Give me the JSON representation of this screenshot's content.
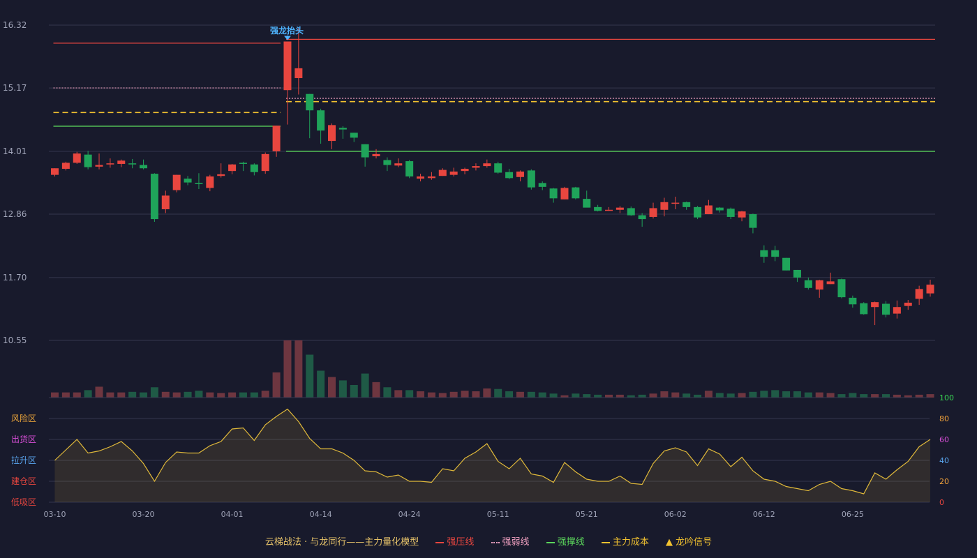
{
  "colors": {
    "background": "#181a2c",
    "up": "#e8463f",
    "down": "#1fa45a",
    "pressure": "#e8463f",
    "weak": "#f0a0c0",
    "support": "#5bd65b",
    "cost": "#f2c230",
    "oscillator": "#e0b93a",
    "signal": "#4fb4ff"
  },
  "chart_data": [
    {
      "type": "candlestick",
      "y_ticks": [
        "16.32",
        "15.17",
        "14.01",
        "12.86",
        "11.70",
        "10.55"
      ],
      "ylim": [
        10.55,
        16.32
      ],
      "x_ticks": [
        {
          "index": 0,
          "label": "03-10"
        },
        {
          "index": 8,
          "label": "03-20"
        },
        {
          "index": 16,
          "label": "04-01"
        },
        {
          "index": 24,
          "label": "04-14"
        },
        {
          "index": 32,
          "label": "04-24"
        },
        {
          "index": 40,
          "label": "05-11"
        },
        {
          "index": 48,
          "label": "05-21"
        },
        {
          "index": 56,
          "label": "06-02"
        },
        {
          "index": 64,
          "label": "06-12"
        },
        {
          "index": 72,
          "label": "06-25"
        }
      ],
      "ohlc": [
        [
          13.58,
          13.7,
          13.55,
          13.7
        ],
        [
          13.69,
          13.82,
          13.66,
          13.8
        ],
        [
          13.8,
          14.0,
          13.78,
          13.97
        ],
        [
          13.95,
          14.02,
          13.68,
          13.72
        ],
        [
          13.73,
          13.97,
          13.68,
          13.76
        ],
        [
          13.77,
          13.88,
          13.71,
          13.79
        ],
        [
          13.78,
          13.86,
          13.72,
          13.84
        ],
        [
          13.79,
          13.87,
          13.7,
          13.77
        ],
        [
          13.76,
          13.86,
          13.68,
          13.7
        ],
        [
          13.6,
          13.61,
          12.72,
          12.77
        ],
        [
          12.95,
          13.29,
          12.88,
          13.2
        ],
        [
          13.3,
          13.58,
          13.26,
          13.58
        ],
        [
          13.51,
          13.56,
          13.39,
          13.44
        ],
        [
          13.43,
          13.61,
          13.32,
          13.41
        ],
        [
          13.34,
          13.58,
          13.28,
          13.55
        ],
        [
          13.56,
          13.79,
          13.53,
          13.59
        ],
        [
          13.65,
          13.78,
          13.59,
          13.77
        ],
        [
          13.8,
          13.82,
          13.65,
          13.78
        ],
        [
          13.77,
          13.79,
          13.57,
          13.63
        ],
        [
          13.65,
          13.99,
          13.6,
          13.96
        ],
        [
          14.01,
          14.48,
          13.91,
          14.48
        ],
        [
          15.13,
          16.02,
          14.5,
          16.02
        ],
        [
          15.35,
          16.27,
          15.05,
          15.53
        ],
        [
          15.06,
          15.06,
          14.25,
          14.76
        ],
        [
          14.76,
          14.79,
          14.15,
          14.39
        ],
        [
          14.2,
          14.52,
          14.05,
          14.49
        ],
        [
          14.44,
          14.47,
          14.24,
          14.41
        ],
        [
          14.35,
          14.35,
          14.18,
          14.26
        ],
        [
          14.14,
          14.14,
          13.73,
          13.9
        ],
        [
          13.92,
          14.05,
          13.88,
          13.96
        ],
        [
          13.85,
          13.9,
          13.65,
          13.76
        ],
        [
          13.75,
          13.88,
          13.72,
          13.79
        ],
        [
          13.83,
          13.85,
          13.52,
          13.55
        ],
        [
          13.51,
          13.6,
          13.46,
          13.55
        ],
        [
          13.52,
          13.63,
          13.49,
          13.55
        ],
        [
          13.56,
          13.7,
          13.56,
          13.67
        ],
        [
          13.58,
          13.71,
          13.55,
          13.64
        ],
        [
          13.65,
          13.71,
          13.59,
          13.69
        ],
        [
          13.71,
          13.79,
          13.66,
          13.74
        ],
        [
          13.74,
          13.86,
          13.71,
          13.79
        ],
        [
          13.79,
          13.82,
          13.6,
          13.62
        ],
        [
          13.63,
          13.69,
          13.5,
          13.52
        ],
        [
          13.54,
          13.66,
          13.46,
          13.64
        ],
        [
          13.66,
          13.68,
          13.31,
          13.35
        ],
        [
          13.43,
          13.46,
          13.3,
          13.36
        ],
        [
          13.33,
          13.34,
          13.07,
          13.15
        ],
        [
          13.13,
          13.36,
          13.13,
          13.34
        ],
        [
          13.35,
          13.36,
          13.13,
          13.15
        ],
        [
          13.14,
          13.29,
          12.99,
          12.98
        ],
        [
          12.99,
          13.03,
          12.91,
          12.92
        ],
        [
          12.94,
          12.99,
          12.92,
          12.94
        ],
        [
          12.94,
          13.01,
          12.88,
          12.98
        ],
        [
          12.97,
          13.0,
          12.83,
          12.84
        ],
        [
          12.84,
          12.88,
          12.63,
          12.77
        ],
        [
          12.81,
          13.07,
          12.78,
          12.97
        ],
        [
          12.94,
          13.16,
          12.82,
          13.08
        ],
        [
          13.06,
          13.18,
          12.95,
          13.07
        ],
        [
          13.08,
          13.09,
          12.94,
          12.99
        ],
        [
          12.99,
          13.01,
          12.77,
          12.8
        ],
        [
          12.86,
          13.12,
          12.86,
          13.02
        ],
        [
          12.98,
          12.99,
          12.89,
          12.93
        ],
        [
          12.96,
          12.98,
          12.77,
          12.81
        ],
        [
          12.8,
          12.92,
          12.73,
          12.91
        ],
        [
          12.86,
          12.87,
          12.51,
          12.61
        ],
        [
          12.2,
          12.29,
          11.97,
          12.08
        ],
        [
          12.2,
          12.28,
          12.0,
          12.08
        ],
        [
          12.06,
          12.06,
          11.83,
          11.83
        ],
        [
          11.84,
          11.84,
          11.62,
          11.7
        ],
        [
          11.65,
          11.7,
          11.48,
          11.51
        ],
        [
          11.48,
          11.66,
          11.33,
          11.65
        ],
        [
          11.58,
          11.79,
          11.58,
          11.63
        ],
        [
          11.67,
          11.68,
          11.32,
          11.34
        ],
        [
          11.33,
          11.37,
          11.15,
          11.21
        ],
        [
          11.23,
          11.25,
          11.02,
          11.03
        ],
        [
          11.16,
          11.26,
          10.83,
          11.25
        ],
        [
          11.22,
          11.27,
          10.97,
          11.02
        ],
        [
          11.04,
          11.28,
          10.95,
          11.16
        ],
        [
          11.18,
          11.29,
          11.11,
          11.24
        ],
        [
          11.31,
          11.55,
          11.2,
          11.49
        ],
        [
          11.41,
          11.66,
          11.35,
          11.57
        ]
      ],
      "volume": [
        9,
        9,
        9,
        13,
        19,
        9,
        9,
        10,
        9,
        18,
        10,
        9,
        10,
        12,
        9,
        8,
        9,
        9,
        9,
        12,
        44,
        100,
        100,
        75,
        47,
        36,
        30,
        22,
        42,
        27,
        18,
        13,
        13,
        11,
        9,
        8,
        10,
        12,
        11,
        16,
        15,
        11,
        10,
        10,
        9,
        7,
        4,
        7,
        6,
        5,
        5,
        5,
        4,
        5,
        7,
        11,
        9,
        7,
        5,
        12,
        8,
        7,
        8,
        10,
        12,
        13,
        11,
        11,
        9,
        9,
        8,
        6,
        8,
        6,
        6,
        6,
        5,
        4,
        5,
        6
      ]
    },
    {
      "type": "line",
      "left_zone_labels": [
        "风险区",
        "出货区",
        "拉升区",
        "建仓区",
        "低吸区"
      ],
      "right_ticks": [
        "100",
        "80",
        "60",
        "40",
        "20",
        "0"
      ],
      "ylim": [
        0,
        100
      ],
      "values": [
        40,
        50,
        60,
        47,
        49,
        53,
        58,
        49,
        37,
        20,
        38,
        48,
        47,
        47,
        54,
        58,
        70,
        71,
        59,
        74,
        82,
        89,
        77,
        61,
        51,
        51,
        47,
        40,
        30,
        29,
        24,
        26,
        20,
        20,
        19,
        32,
        30,
        42,
        48,
        56,
        39,
        32,
        42,
        27,
        25,
        19,
        38,
        29,
        22,
        20,
        20,
        25,
        18,
        17,
        37,
        49,
        52,
        48,
        35,
        51,
        46,
        34,
        43,
        30,
        22,
        20,
        15,
        13,
        11,
        17,
        20,
        13,
        11,
        8,
        28,
        22,
        31,
        39,
        53,
        60
      ]
    }
  ],
  "levels": {
    "before": {
      "pressure": 15.99,
      "weak": 15.17,
      "cost": 14.72,
      "support": 14.47
    },
    "after": {
      "pressure": 16.06,
      "weak": 14.98,
      "cost": 14.92,
      "support": 14.01
    },
    "split_index": 21
  },
  "signal": {
    "label": "强龙抬头",
    "index": 21
  },
  "legend": {
    "title": "云梯战法 · 与龙同行——主力量化模型",
    "items": [
      {
        "label": "强压线",
        "color": "#e8463f",
        "style": "solid"
      },
      {
        "label": "强弱线",
        "color": "#f0a0c0",
        "style": "dotted"
      },
      {
        "label": "强撑线",
        "color": "#5bd65b",
        "style": "solid"
      },
      {
        "label": "主力成本",
        "color": "#f2c230",
        "style": "dashed"
      }
    ],
    "marker": {
      "glyph": "▲",
      "label": "龙吟信号",
      "color": "#f2c230"
    }
  }
}
